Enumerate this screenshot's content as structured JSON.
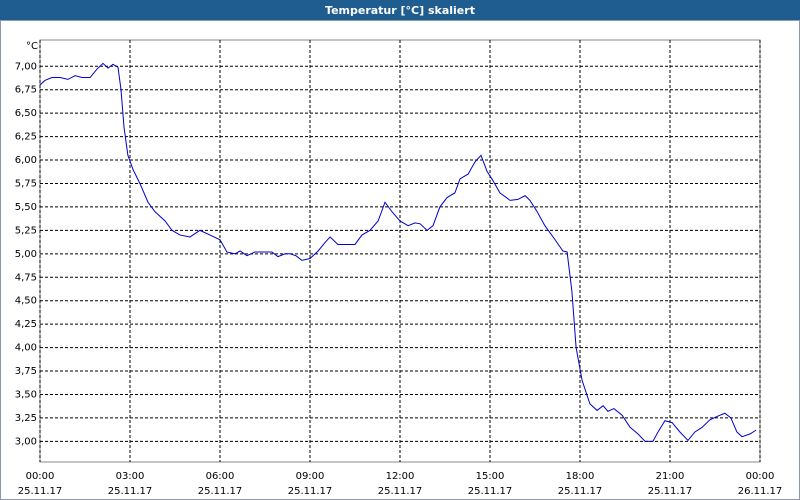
{
  "chart_data": {
    "type": "line",
    "title": "Temperatur [°C] skaliert",
    "y_unit": "°C",
    "color": "#0000cc",
    "grid": true,
    "xlim": [
      0,
      24
    ],
    "ylim": [
      2.78,
      7.28
    ],
    "xticks": [
      {
        "value": 0,
        "label": "00:00",
        "date": "25.11.17"
      },
      {
        "value": 3,
        "label": "03:00",
        "date": "25.11.17"
      },
      {
        "value": 6,
        "label": "06:00",
        "date": "25.11.17"
      },
      {
        "value": 9,
        "label": "09:00",
        "date": "25.11.17"
      },
      {
        "value": 12,
        "label": "12:00",
        "date": "25.11.17"
      },
      {
        "value": 15,
        "label": "15:00",
        "date": "25.11.17"
      },
      {
        "value": 18,
        "label": "18:00",
        "date": "25.11.17"
      },
      {
        "value": 21,
        "label": "21:00",
        "date": "25.11.17"
      },
      {
        "value": 24,
        "label": "00:00",
        "date": "26.11.17"
      }
    ],
    "yticks": [
      {
        "value": 3.0,
        "label": "3,00"
      },
      {
        "value": 3.25,
        "label": "3,25"
      },
      {
        "value": 3.5,
        "label": "3,50"
      },
      {
        "value": 3.75,
        "label": "3,75"
      },
      {
        "value": 4.0,
        "label": "4,00"
      },
      {
        "value": 4.25,
        "label": "4,25"
      },
      {
        "value": 4.5,
        "label": "4,50"
      },
      {
        "value": 4.75,
        "label": "4,75"
      },
      {
        "value": 5.0,
        "label": "5,00"
      },
      {
        "value": 5.25,
        "label": "5,25"
      },
      {
        "value": 5.5,
        "label": "5,50"
      },
      {
        "value": 5.75,
        "label": "5,75"
      },
      {
        "value": 6.0,
        "label": "6,00"
      },
      {
        "value": 6.25,
        "label": "6,25"
      },
      {
        "value": 6.5,
        "label": "6,50"
      },
      {
        "value": 6.75,
        "label": "6,75"
      },
      {
        "value": 7.0,
        "label": "7,00"
      }
    ],
    "x": [
      0,
      0.17,
      0.4,
      0.67,
      0.93,
      1.17,
      1.4,
      1.67,
      1.9,
      2.1,
      2.27,
      2.43,
      2.6,
      2.7,
      2.8,
      2.93,
      3.1,
      3.33,
      3.6,
      3.83,
      4.17,
      4.4,
      4.67,
      5,
      5.33,
      5.67,
      6,
      6.23,
      6.5,
      6.67,
      6.9,
      7.17,
      7.5,
      7.73,
      7.93,
      8.17,
      8.33,
      8.53,
      8.73,
      9,
      9.27,
      9.5,
      9.67,
      9.93,
      10.17,
      10.5,
      10.73,
      11,
      11.27,
      11.5,
      11.73,
      12,
      12.27,
      12.5,
      12.67,
      12.9,
      13.1,
      13.33,
      13.57,
      13.83,
      14,
      14.27,
      14.5,
      14.7,
      14.9,
      15.1,
      15.33,
      15.67,
      15.93,
      16.17,
      16.33,
      16.57,
      16.83,
      17.17,
      17.43,
      17.57,
      17.73,
      17.87,
      18.07,
      18.33,
      18.57,
      18.77,
      18.93,
      19.13,
      19.4,
      19.67,
      19.93,
      20.17,
      20.43,
      20.6,
      20.83,
      21.07,
      21.33,
      21.6,
      21.83,
      22.07,
      22.33,
      22.6,
      22.83,
      23.03,
      23.23,
      23.4,
      23.67,
      23.87
    ],
    "values": [
      6.8,
      6.85,
      6.88,
      6.88,
      6.86,
      6.9,
      6.88,
      6.88,
      6.97,
      7.03,
      6.98,
      7.02,
      6.99,
      6.75,
      6.35,
      6.05,
      5.9,
      5.75,
      5.55,
      5.45,
      5.35,
      5.25,
      5.2,
      5.18,
      5.25,
      5.2,
      5.15,
      5.02,
      5.0,
      5.03,
      4.98,
      5.02,
      5.02,
      5.02,
      4.97,
      5.0,
      5.0,
      4.98,
      4.93,
      4.95,
      5.03,
      5.12,
      5.18,
      5.1,
      5.1,
      5.1,
      5.2,
      5.25,
      5.35,
      5.55,
      5.45,
      5.35,
      5.3,
      5.33,
      5.32,
      5.25,
      5.3,
      5.5,
      5.6,
      5.65,
      5.8,
      5.85,
      5.98,
      6.05,
      5.88,
      5.78,
      5.65,
      5.57,
      5.58,
      5.62,
      5.57,
      5.45,
      5.3,
      5.15,
      5.03,
      5.02,
      4.6,
      4.0,
      3.65,
      3.4,
      3.33,
      3.38,
      3.32,
      3.35,
      3.28,
      3.15,
      3.08,
      3.0,
      3.0,
      3.1,
      3.22,
      3.2,
      3.1,
      3.01,
      3.1,
      3.15,
      3.23,
      3.27,
      3.3,
      3.25,
      3.1,
      3.05,
      3.08,
      3.12
    ]
  }
}
